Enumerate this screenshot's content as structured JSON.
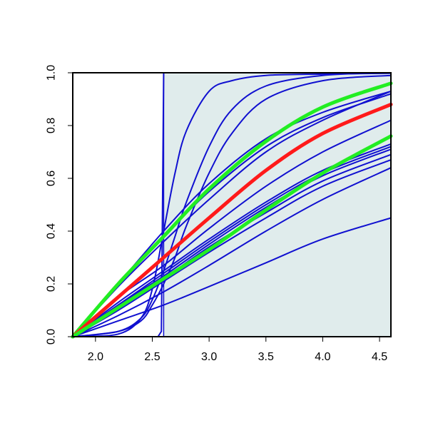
{
  "chart_data": {
    "type": "line",
    "title": "",
    "xlabel": "",
    "ylabel": "",
    "xlim": [
      1.8,
      4.6
    ],
    "ylim": [
      0.0,
      1.0
    ],
    "x_ticks": [
      2.0,
      2.5,
      3.0,
      3.5,
      4.0,
      4.5
    ],
    "x_tick_labels": [
      "2.0",
      "2.5",
      "3.0",
      "3.5",
      "4.0",
      "4.5"
    ],
    "y_ticks": [
      0.0,
      0.2,
      0.4,
      0.6,
      0.8,
      1.0
    ],
    "y_tick_labels": [
      "0.0",
      "0.2",
      "0.4",
      "0.6",
      "0.8",
      "1.0"
    ],
    "grid": false,
    "legend": "none",
    "shaded_region": {
      "x_from": 2.6,
      "x_to": 4.6,
      "y_from": 0.0,
      "y_to": 1.0,
      "color": "#e0ecec"
    },
    "colors": {
      "blue": "#1010d0",
      "red": "#ff1a1a",
      "green": "#22ee22",
      "axis": "#000000"
    },
    "series": [
      {
        "color": "blue",
        "width": 2,
        "x": [
          1.8,
          2.55,
          2.58,
          2.59,
          2.6,
          2.7,
          3.0,
          4.6
        ],
        "y": [
          0.0,
          0.0,
          0.02,
          0.5,
          1.0,
          1.0,
          1.0,
          1.0
        ]
      },
      {
        "color": "blue",
        "width": 2,
        "x": [
          1.8,
          2.2,
          2.4,
          2.5,
          2.6,
          2.7,
          2.8,
          3.0,
          3.2,
          3.5,
          4.0,
          4.6
        ],
        "y": [
          0.0,
          0.01,
          0.07,
          0.18,
          0.4,
          0.62,
          0.78,
          0.93,
          0.97,
          0.99,
          0.995,
          0.998
        ]
      },
      {
        "color": "blue",
        "width": 2,
        "x": [
          1.8,
          2.2,
          2.4,
          2.5,
          2.6,
          2.7,
          2.8,
          3.0,
          3.2,
          3.5,
          4.0,
          4.6
        ],
        "y": [
          0.0,
          0.02,
          0.07,
          0.14,
          0.25,
          0.38,
          0.51,
          0.72,
          0.86,
          0.95,
          0.99,
          1.0
        ]
      },
      {
        "color": "blue",
        "width": 2,
        "x": [
          1.8,
          2.2,
          2.4,
          2.5,
          2.6,
          2.7,
          2.8,
          3.0,
          3.2,
          3.5,
          4.0,
          4.6
        ],
        "y": [
          0.0,
          0.02,
          0.06,
          0.12,
          0.2,
          0.3,
          0.42,
          0.62,
          0.77,
          0.9,
          0.97,
          0.99
        ]
      },
      {
        "color": "blue",
        "width": 2,
        "x": [
          1.8,
          2.2,
          2.6,
          3.0,
          3.5,
          4.0,
          4.6
        ],
        "y": [
          0.0,
          0.2,
          0.4,
          0.58,
          0.75,
          0.85,
          0.93
        ]
      },
      {
        "color": "blue",
        "width": 2,
        "x": [
          1.8,
          2.2,
          2.6,
          3.0,
          3.5,
          4.0,
          4.6
        ],
        "y": [
          0.0,
          0.2,
          0.38,
          0.55,
          0.72,
          0.83,
          0.92
        ]
      },
      {
        "color": "blue",
        "width": 2,
        "x": [
          1.8,
          2.2,
          2.6,
          3.0,
          3.5,
          4.0,
          4.6
        ],
        "y": [
          0.0,
          0.19,
          0.36,
          0.52,
          0.7,
          0.82,
          0.93
        ]
      },
      {
        "color": "blue",
        "width": 2,
        "x": [
          1.8,
          2.2,
          2.6,
          3.0,
          3.5,
          4.0,
          4.6
        ],
        "y": [
          0.0,
          0.13,
          0.25,
          0.37,
          0.51,
          0.63,
          0.73
        ]
      },
      {
        "color": "blue",
        "width": 2,
        "x": [
          1.8,
          2.2,
          2.6,
          3.0,
          3.5,
          4.0,
          4.6
        ],
        "y": [
          0.0,
          0.12,
          0.24,
          0.36,
          0.5,
          0.62,
          0.72
        ]
      },
      {
        "color": "blue",
        "width": 2,
        "x": [
          1.8,
          2.2,
          2.6,
          3.0,
          3.5,
          4.0,
          4.6
        ],
        "y": [
          0.0,
          0.12,
          0.23,
          0.35,
          0.49,
          0.61,
          0.71
        ]
      },
      {
        "color": "blue",
        "width": 2,
        "x": [
          1.8,
          2.2,
          2.6,
          3.0,
          3.5,
          4.0,
          4.6
        ],
        "y": [
          0.0,
          0.11,
          0.22,
          0.34,
          0.47,
          0.59,
          0.69
        ]
      },
      {
        "color": "blue",
        "width": 2,
        "x": [
          1.8,
          2.2,
          2.6,
          3.0,
          3.5,
          4.0,
          4.6
        ],
        "y": [
          0.0,
          0.1,
          0.21,
          0.32,
          0.45,
          0.57,
          0.67
        ]
      },
      {
        "color": "blue",
        "width": 2,
        "x": [
          1.8,
          2.2,
          2.6,
          3.0,
          3.5,
          4.0,
          4.6
        ],
        "y": [
          0.0,
          0.15,
          0.27,
          0.41,
          0.57,
          0.7,
          0.82
        ]
      },
      {
        "color": "blue",
        "width": 2,
        "x": [
          1.8,
          2.2,
          2.6,
          3.0,
          3.5,
          4.0,
          4.6
        ],
        "y": [
          0.0,
          0.08,
          0.17,
          0.27,
          0.4,
          0.52,
          0.64
        ]
      },
      {
        "color": "blue",
        "width": 2,
        "x": [
          1.8,
          2.2,
          2.6,
          3.0,
          3.5,
          4.0,
          4.6
        ],
        "y": [
          0.0,
          0.06,
          0.12,
          0.19,
          0.28,
          0.37,
          0.45
        ]
      },
      {
        "color": "green",
        "width": 5,
        "x": [
          1.8,
          2.2,
          2.6,
          3.0,
          3.5,
          4.0,
          4.6
        ],
        "y": [
          0.0,
          0.2,
          0.38,
          0.56,
          0.74,
          0.87,
          0.96
        ]
      },
      {
        "color": "red",
        "width": 5,
        "x": [
          1.8,
          2.2,
          2.6,
          3.0,
          3.5,
          4.0,
          4.6
        ],
        "y": [
          0.0,
          0.15,
          0.3,
          0.45,
          0.63,
          0.77,
          0.88
        ]
      },
      {
        "color": "green",
        "width": 5,
        "x": [
          1.8,
          2.2,
          2.6,
          3.0,
          3.5,
          4.0,
          4.6
        ],
        "y": [
          0.0,
          0.11,
          0.22,
          0.33,
          0.48,
          0.62,
          0.76
        ]
      }
    ]
  }
}
